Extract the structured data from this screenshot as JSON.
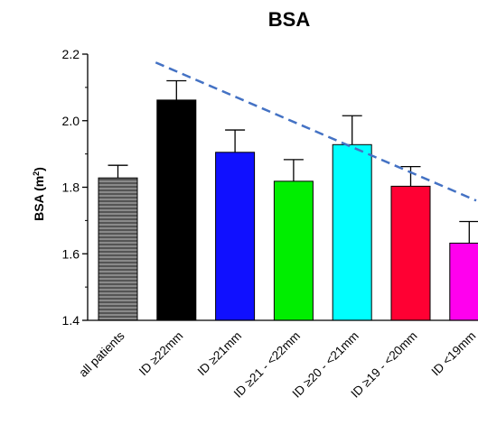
{
  "chart_data": {
    "type": "bar",
    "title": "BSA",
    "ylabel_main": "BSA (m",
    "ylabel_sup": "2",
    "ylabel_close": ")",
    "ylim": [
      1.4,
      2.2
    ],
    "yticks": [
      "1.4",
      "1.6",
      "1.8",
      "2.0",
      "2.2"
    ],
    "categories": [
      "all patients",
      "ID ≥22mm",
      "ID ≥21mm",
      "ID ≥21 - <22mm",
      "ID ≥20 - <21mm",
      "ID ≥19 - <20mm",
      "ID <19mm"
    ],
    "values": [
      1.828,
      2.062,
      1.905,
      1.818,
      1.928,
      1.803,
      1.632
    ],
    "error_upper": [
      1.866,
      2.12,
      1.972,
      1.883,
      2.015,
      1.862,
      1.697
    ],
    "colors": [
      "#777777",
      "#000000",
      "#1010ff",
      "#00ee00",
      "#00ffff",
      "#ff0033",
      "#ff00ee"
    ],
    "first_bar_style": "horizontal-striped",
    "trend_line": {
      "style": "dashed",
      "color": "#4472c4",
      "y_start": 2.175,
      "y_end": 1.76
    },
    "grid": false,
    "legend": "none"
  }
}
